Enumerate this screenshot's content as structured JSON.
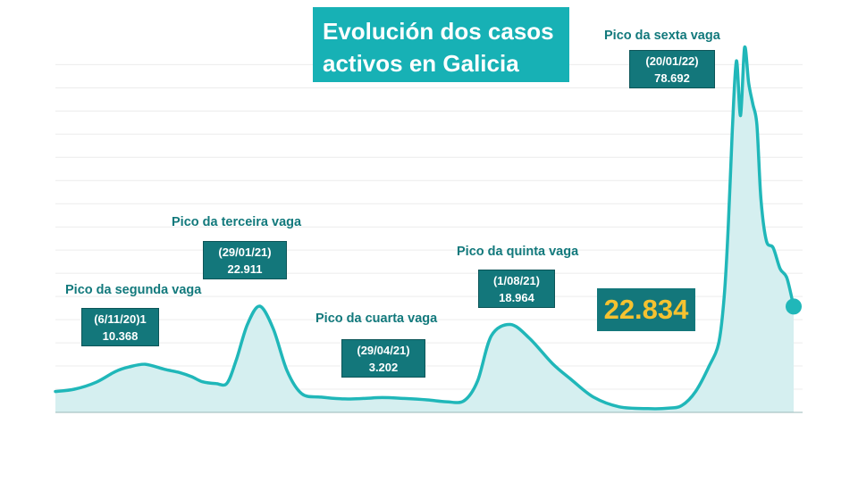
{
  "chart_data": {
    "type": "area",
    "title_lines": [
      "Evolución dos casos",
      "activos en Galicia"
    ],
    "xlabel": "",
    "ylabel": "",
    "ylim": [
      0,
      82000
    ],
    "grid": true,
    "x": [
      "2020-09-01",
      "2020-09-15",
      "2020-10-01",
      "2020-10-15",
      "2020-10-25",
      "2020-11-06",
      "2020-11-20",
      "2020-12-01",
      "2020-12-10",
      "2020-12-18",
      "2020-12-28",
      "2021-01-05",
      "2021-01-12",
      "2021-01-20",
      "2021-01-29",
      "2021-02-08",
      "2021-02-18",
      "2021-03-01",
      "2021-03-15",
      "2021-04-01",
      "2021-04-15",
      "2021-04-29",
      "2021-05-15",
      "2021-06-01",
      "2021-06-15",
      "2021-06-28",
      "2021-07-08",
      "2021-07-18",
      "2021-08-01",
      "2021-08-15",
      "2021-09-01",
      "2021-09-15",
      "2021-10-01",
      "2021-10-20",
      "2021-11-10",
      "2021-11-25",
      "2021-12-05",
      "2021-12-15",
      "2021-12-25",
      "2022-01-01",
      "2022-01-05",
      "2022-01-08",
      "2022-01-11",
      "2022-01-14",
      "2022-01-17",
      "2022-01-20",
      "2022-01-23",
      "2022-01-26",
      "2022-01-29",
      "2022-02-01",
      "2022-02-05",
      "2022-02-10",
      "2022-02-15",
      "2022-02-20",
      "2022-02-25"
    ],
    "values": [
      4500,
      5000,
      6500,
      8800,
      9800,
      10368,
      9300,
      8600,
      7700,
      6600,
      6200,
      6300,
      11500,
      19000,
      22911,
      18000,
      9000,
      4000,
      3300,
      2900,
      3000,
      3202,
      3000,
      2700,
      2300,
      2500,
      6800,
      16500,
      18964,
      16000,
      10500,
      7000,
      3300,
      1200,
      800,
      900,
      1500,
      4500,
      10000,
      15000,
      25000,
      40000,
      61000,
      75800,
      64000,
      78692,
      71000,
      66500,
      62000,
      46000,
      37000,
      35500,
      31000,
      29000,
      22834
    ],
    "annotations": [
      {
        "label": "Pico da segunda vaga",
        "date": "(6/11/20)1",
        "value": "10.368"
      },
      {
        "label": "Pico da terceira vaga",
        "date": "(29/01/21)",
        "value": "22.911"
      },
      {
        "label": "Pico da cuarta vaga",
        "date": "(29/04/21)",
        "value": "3.202"
      },
      {
        "label": "Pico da quinta vaga",
        "date": "(1/08/21)",
        "value": "18.964"
      },
      {
        "label": "Pico da sexta vaga",
        "date": "(20/01/22)",
        "value": "78.692"
      }
    ],
    "current_value": "22.834",
    "colors": {
      "line": "#20b7b9",
      "fill": "#d5eff0",
      "title_bg": "#17b1b5",
      "box_bg": "#13777b",
      "label_text": "#12797c",
      "highlight_text": "#f5c230"
    }
  }
}
